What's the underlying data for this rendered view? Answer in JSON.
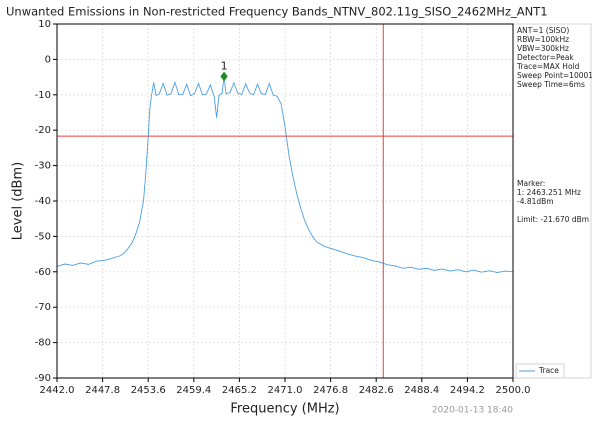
{
  "chart_data": {
    "type": "line",
    "title": "Unwanted Emissions in Non-restricted Frequency Bands_NTNV_802.11g_SISO_2462MHz_ANT1",
    "x_label": "Frequency (MHz)",
    "y_label": "Level (dBm)",
    "xlim": [
      2442,
      2500
    ],
    "ylim": [
      -90,
      10
    ],
    "xticks": [
      {
        "value": 2442,
        "label": "2442.0"
      },
      2447.8,
      2453.6,
      2459.4,
      2465.2,
      {
        "value": 2471,
        "label": "2471.0"
      },
      2476.8,
      2482.6,
      2488.4,
      2494.2,
      {
        "value": 2500,
        "label": "2500.0"
      }
    ],
    "yticks": [
      10,
      0,
      -10,
      -20,
      -30,
      -40,
      -50,
      -60,
      -70,
      -80,
      -90
    ],
    "grid": true,
    "legend": "lower right",
    "x": [
      2442,
      2443,
      2444,
      2445,
      2446,
      2447,
      2448,
      2449,
      2450,
      2450.5,
      2451,
      2451.5,
      2452,
      2452.5,
      2453,
      2453.3,
      2453.6,
      2453.8,
      2454,
      2454.3,
      2454.6,
      2455,
      2455.5,
      2456,
      2456.5,
      2457,
      2457.5,
      2458,
      2458.5,
      2459,
      2459.5,
      2460,
      2460.5,
      2461,
      2461.5,
      2462,
      2462.3,
      2462.6,
      2463,
      2463.25,
      2463.5,
      2464,
      2464.5,
      2465,
      2465.5,
      2466,
      2466.5,
      2467,
      2467.5,
      2468,
      2468.5,
      2469,
      2469.5,
      2470,
      2470.5,
      2471,
      2471.5,
      2472,
      2472.5,
      2473,
      2473.5,
      2474,
      2474.5,
      2475,
      2476,
      2477,
      2478,
      2479,
      2480,
      2481,
      2482,
      2483,
      2484,
      2485,
      2486,
      2487,
      2488,
      2489,
      2490,
      2491,
      2492,
      2493,
      2494,
      2495,
      2496,
      2497,
      2498,
      2499,
      2500
    ],
    "series": [
      {
        "name": "Trace",
        "color": "#4a9fe3",
        "values": [
          -58.5,
          -57.8,
          -58.2,
          -57.5,
          -57.9,
          -57.0,
          -56.8,
          -56.2,
          -55.5,
          -54.8,
          -53.5,
          -52.0,
          -49.5,
          -46.0,
          -40.0,
          -32.0,
          -22.0,
          -14.0,
          -10.5,
          -6.5,
          -10.2,
          -9.8,
          -6.8,
          -10.1,
          -9.7,
          -6.5,
          -10.0,
          -9.9,
          -7.0,
          -10.3,
          -9.6,
          -6.8,
          -10.0,
          -9.8,
          -7.2,
          -10.5,
          -16.5,
          -10.2,
          -9.5,
          -4.8,
          -9.7,
          -9.4,
          -6.6,
          -9.6,
          -9.9,
          -6.9,
          -9.5,
          -10.0,
          -7.0,
          -9.7,
          -9.9,
          -6.8,
          -10.1,
          -10.4,
          -12.5,
          -19.0,
          -27.0,
          -33.0,
          -38.0,
          -42.0,
          -45.5,
          -48.0,
          -50.0,
          -51.5,
          -52.8,
          -53.5,
          -54.2,
          -55.0,
          -55.6,
          -56.0,
          -56.8,
          -57.2,
          -58.0,
          -58.3,
          -59.0,
          -58.7,
          -59.3,
          -59.0,
          -59.6,
          -59.2,
          -59.8,
          -59.4,
          -60.0,
          -59.5,
          -60.1,
          -59.7,
          -60.2,
          -59.8,
          -60.0
        ]
      }
    ],
    "limit_line": {
      "value": -21.67,
      "color": "#e8403c"
    },
    "band_edge": {
      "value": 2483.5,
      "color": "#e8403c"
    },
    "marker": {
      "label": "1",
      "x": 2463.251,
      "y": -4.81,
      "color": "#1e8a1e"
    },
    "info_box": [
      "ANT=1 (SISO)",
      "RBW=100kHz",
      "VBW=300kHz",
      "Detector=Peak",
      "Trace=MAX Hold",
      "Sweep Point=10001",
      "Sweep Time=6ms"
    ],
    "marker_box": [
      "Marker:",
      "1: 2463.251 MHz",
      "   -4.81dBm",
      "",
      "Limit: -21.670 dBm"
    ],
    "timestamp": "2020-01-13 18:40"
  }
}
